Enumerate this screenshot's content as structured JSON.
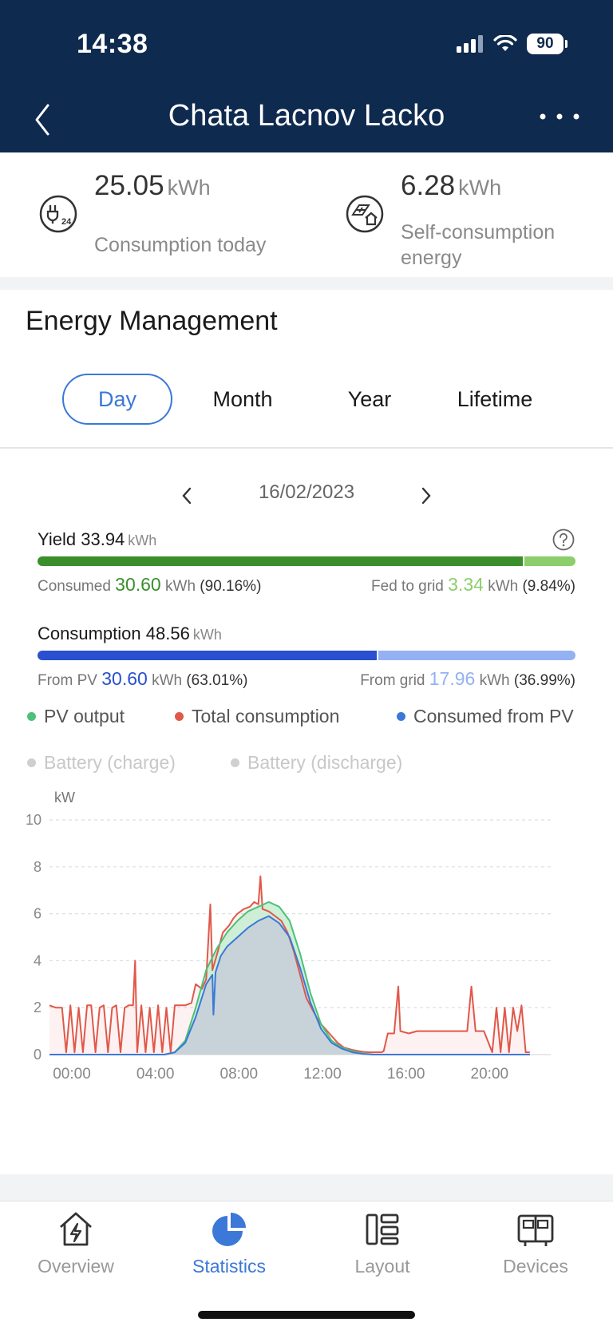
{
  "status_bar": {
    "time": "14:38",
    "battery": "90"
  },
  "header": {
    "title": "Chata Lacnov Lacko",
    "back_icon": "chevron-left-icon",
    "more_icon": "more-horizontal-icon"
  },
  "summary": {
    "consumption": {
      "value": "25.05",
      "unit": "kWh",
      "label": "Consumption today",
      "icon": "plug-24-icon"
    },
    "self_consumption": {
      "value": "6.28",
      "unit": "kWh",
      "label_line1": "Self-consumption",
      "label_line2": "energy",
      "icon": "solar-house-icon"
    }
  },
  "energy": {
    "title": "Energy Management",
    "tabs": [
      "Day",
      "Month",
      "Year",
      "Lifetime"
    ],
    "active_tab": "Day",
    "date": "16/02/2023",
    "yield": {
      "label": "Yield",
      "value": "33.94",
      "unit": "kWh",
      "consumed_label": "Consumed",
      "consumed_value": "30.60",
      "consumed_unit": "kWh",
      "consumed_pct": "(90.16%)",
      "fed_label": "Fed to grid",
      "fed_value": "3.34",
      "fed_unit": "kWh",
      "fed_pct": "(9.84%)",
      "consumed_fraction": 0.9016
    },
    "consumption": {
      "label": "Consumption",
      "value": "48.56",
      "unit": "kWh",
      "pv_label": "From PV",
      "pv_value": "30.60",
      "pv_unit": "kWh",
      "pv_pct": "(63.01%)",
      "grid_label": "From grid",
      "grid_value": "17.96",
      "grid_unit": "kWh",
      "grid_pct": "(36.99%)",
      "pv_fraction": 0.6301
    },
    "legend": [
      {
        "label": "PV output",
        "color": "#4cc17a",
        "active": true
      },
      {
        "label": "Total consumption",
        "color": "#e0584a",
        "active": true
      },
      {
        "label": "Consumed from PV",
        "color": "#3b78d8",
        "active": true
      },
      {
        "label": "Battery (charge)",
        "color": "#cfcfcf",
        "active": false
      },
      {
        "label": "Battery (discharge)",
        "color": "#cfcfcf",
        "active": false
      }
    ]
  },
  "colors": {
    "header_bg": "#0f2a4f",
    "accent": "#3b78d8",
    "yield_dark": "#3a8f2b",
    "yield_light": "#8cce6c",
    "cons_dark": "#2a4fcf",
    "cons_light": "#94b2f3",
    "pv_line": "#4cc17a",
    "total_line": "#e0584a",
    "consumed_line": "#3b78d8"
  },
  "chart_data": {
    "type": "line",
    "ylabel": "kW",
    "ylim": [
      0,
      10
    ],
    "yticks": [
      "0",
      "2",
      "4",
      "6",
      "8",
      "10"
    ],
    "xticks": [
      "00:00",
      "04:00",
      "08:00",
      "12:00",
      "16:00",
      "20:00"
    ],
    "x_range_hours": [
      0,
      24
    ],
    "grid": "dashed horizontal",
    "series": [
      {
        "name": "Total consumption",
        "color": "#e0584a",
        "points": [
          [
            0.0,
            2.1
          ],
          [
            0.3,
            2.0
          ],
          [
            0.6,
            2.0
          ],
          [
            0.8,
            0.1
          ],
          [
            1.0,
            2.1
          ],
          [
            1.2,
            0.1
          ],
          [
            1.4,
            2.0
          ],
          [
            1.6,
            0.1
          ],
          [
            1.8,
            2.1
          ],
          [
            2.0,
            2.1
          ],
          [
            2.2,
            0.1
          ],
          [
            2.4,
            2.0
          ],
          [
            2.6,
            2.1
          ],
          [
            2.8,
            0.1
          ],
          [
            3.0,
            2.0
          ],
          [
            3.2,
            2.1
          ],
          [
            3.4,
            0.1
          ],
          [
            3.6,
            2.0
          ],
          [
            3.8,
            2.1
          ],
          [
            4.0,
            2.1
          ],
          [
            4.1,
            4.0
          ],
          [
            4.2,
            0.1
          ],
          [
            4.4,
            2.1
          ],
          [
            4.6,
            0.1
          ],
          [
            4.8,
            2.0
          ],
          [
            5.0,
            0.1
          ],
          [
            5.2,
            2.1
          ],
          [
            5.4,
            0.1
          ],
          [
            5.6,
            2.0
          ],
          [
            5.8,
            0.1
          ],
          [
            6.0,
            2.1
          ],
          [
            6.3,
            2.1
          ],
          [
            6.5,
            2.1
          ],
          [
            6.8,
            2.2
          ],
          [
            7.0,
            3.0
          ],
          [
            7.3,
            2.8
          ],
          [
            7.5,
            3.2
          ],
          [
            7.7,
            6.4
          ],
          [
            7.8,
            3.6
          ],
          [
            8.0,
            4.2
          ],
          [
            8.3,
            5.2
          ],
          [
            8.6,
            5.5
          ],
          [
            8.8,
            5.8
          ],
          [
            9.0,
            6.0
          ],
          [
            9.3,
            6.2
          ],
          [
            9.6,
            6.3
          ],
          [
            9.8,
            6.5
          ],
          [
            10.0,
            6.4
          ],
          [
            10.1,
            7.6
          ],
          [
            10.2,
            6.2
          ],
          [
            10.5,
            6.1
          ],
          [
            10.8,
            5.9
          ],
          [
            11.1,
            5.7
          ],
          [
            11.4,
            5.2
          ],
          [
            11.7,
            4.4
          ],
          [
            12.0,
            3.4
          ],
          [
            12.3,
            2.4
          ],
          [
            12.6,
            1.9
          ],
          [
            12.9,
            1.4
          ],
          [
            13.2,
            1.1
          ],
          [
            13.5,
            0.8
          ],
          [
            13.8,
            0.5
          ],
          [
            14.1,
            0.3
          ],
          [
            14.5,
            0.2
          ],
          [
            14.8,
            0.15
          ],
          [
            15.0,
            0.12
          ],
          [
            15.3,
            0.1
          ],
          [
            15.5,
            0.1
          ],
          [
            15.7,
            0.1
          ],
          [
            15.9,
            0.1
          ],
          [
            16.0,
            0.15
          ],
          [
            16.2,
            0.9
          ],
          [
            16.5,
            0.9
          ],
          [
            16.7,
            2.9
          ],
          [
            16.8,
            1.0
          ],
          [
            17.2,
            0.9
          ],
          [
            17.6,
            1.0
          ],
          [
            18.0,
            1.0
          ],
          [
            18.5,
            1.0
          ],
          [
            19.0,
            1.0
          ],
          [
            19.5,
            1.0
          ],
          [
            20.0,
            1.0
          ],
          [
            20.2,
            2.9
          ],
          [
            20.4,
            1.0
          ],
          [
            20.8,
            1.0
          ],
          [
            21.2,
            0.1
          ],
          [
            21.4,
            2.0
          ],
          [
            21.6,
            0.1
          ],
          [
            21.8,
            2.0
          ],
          [
            22.0,
            0.1
          ],
          [
            22.2,
            2.0
          ],
          [
            22.4,
            1.0
          ],
          [
            22.6,
            2.1
          ],
          [
            22.8,
            0.1
          ],
          [
            23.0,
            0.1
          ]
        ]
      },
      {
        "name": "PV output",
        "color": "#4cc17a",
        "points": [
          [
            0,
            0
          ],
          [
            5.5,
            0
          ],
          [
            6.0,
            0.1
          ],
          [
            6.5,
            0.6
          ],
          [
            7.0,
            2.0
          ],
          [
            7.5,
            3.6
          ],
          [
            8.0,
            4.5
          ],
          [
            8.5,
            5.2
          ],
          [
            9.0,
            5.7
          ],
          [
            9.5,
            6.1
          ],
          [
            10.0,
            6.3
          ],
          [
            10.5,
            6.5
          ],
          [
            11.0,
            6.3
          ],
          [
            11.5,
            5.7
          ],
          [
            12.0,
            4.3
          ],
          [
            12.5,
            2.6
          ],
          [
            13.0,
            1.3
          ],
          [
            13.5,
            0.6
          ],
          [
            14.0,
            0.3
          ],
          [
            14.5,
            0.15
          ],
          [
            15.0,
            0.05
          ],
          [
            15.5,
            0
          ],
          [
            16.5,
            0
          ],
          [
            23,
            0
          ]
        ]
      },
      {
        "name": "Consumed from PV",
        "color": "#3b78d8",
        "points": [
          [
            0,
            0
          ],
          [
            5.5,
            0
          ],
          [
            6.0,
            0.1
          ],
          [
            6.5,
            0.5
          ],
          [
            7.0,
            1.6
          ],
          [
            7.5,
            3.0
          ],
          [
            7.8,
            3.4
          ],
          [
            7.85,
            1.7
          ],
          [
            7.95,
            3.5
          ],
          [
            8.2,
            4.2
          ],
          [
            8.5,
            4.6
          ],
          [
            9.0,
            5.0
          ],
          [
            9.5,
            5.4
          ],
          [
            10.0,
            5.7
          ],
          [
            10.5,
            5.9
          ],
          [
            11.0,
            5.6
          ],
          [
            11.5,
            5.0
          ],
          [
            12.0,
            3.7
          ],
          [
            12.5,
            2.2
          ],
          [
            13.0,
            1.1
          ],
          [
            13.5,
            0.5
          ],
          [
            14.0,
            0.25
          ],
          [
            14.5,
            0.1
          ],
          [
            15.0,
            0.03
          ],
          [
            15.5,
            0
          ],
          [
            23,
            0
          ]
        ]
      }
    ]
  },
  "bottom_nav": [
    {
      "label": "Overview",
      "icon": "home-bolt-icon",
      "active": false
    },
    {
      "label": "Statistics",
      "icon": "pie-chart-icon",
      "active": true
    },
    {
      "label": "Layout",
      "icon": "layout-icon",
      "active": false
    },
    {
      "label": "Devices",
      "icon": "devices-icon",
      "active": false
    }
  ]
}
